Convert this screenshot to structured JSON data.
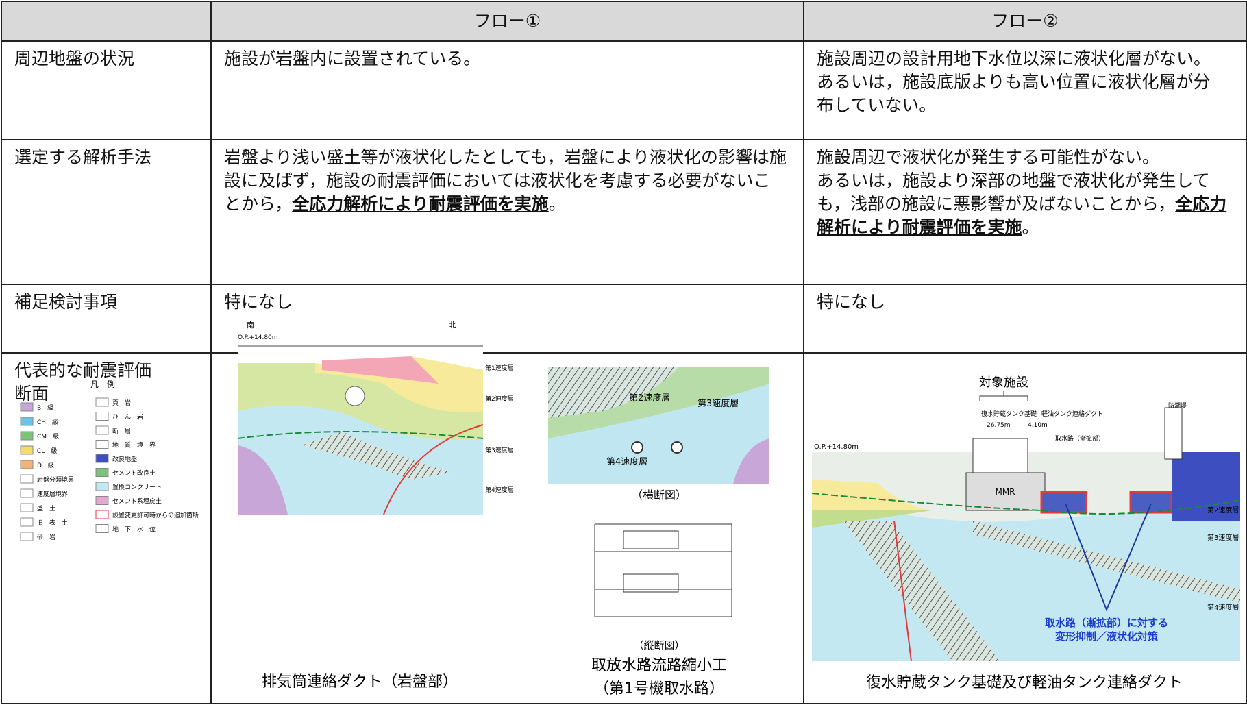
{
  "header": {
    "col1": "フロー①",
    "col2": "フロー②"
  },
  "rows": [
    {
      "label": "周辺地盤の状況",
      "flow1": {
        "text": "施設が岩盤内に設置されている。"
      },
      "flow2": {
        "lines": [
          "施設周辺の設計用地下水位以深に液状化層がない。",
          "あるいは，施設底版よりも高い位置に液状化層が分布していない。"
        ]
      }
    },
    {
      "label": "選定する解析手法",
      "flow1": {
        "before": "岩盤より浅い盛土等が液状化したとしても，岩盤により液状化の影響は施設に及ばず，施設の耐震評価においては液状化を考慮する必要がないことから，",
        "emphasis": "全応力解析により耐震評価を実施",
        "after": "。"
      },
      "flow2": {
        "line1": "施設周辺で液状化が発生する可能性がない。",
        "before": "あるいは，施設より深部の地盤で液状化が発生しても，浅部の施設に悪影響が及ばないことから，",
        "emphasis": "全応力解析により耐震評価を実施",
        "after": "。"
      }
    },
    {
      "label": "補足検討事項",
      "flow1": {
        "text": "特になし"
      },
      "flow2": {
        "text": "特になし"
      }
    },
    {
      "label": "代表的な耐震評価断面",
      "legend": {
        "title": "凡　例",
        "items": [
          "B　級",
          "CH　級",
          "CM　級",
          "CL　級",
          "D　級",
          "岩盤分類境界",
          "速度層境界",
          "盛　土",
          "旧　表　土",
          "砂　岩",
          "頁　岩",
          "ひ　ん　岩",
          "断　層",
          "地　質　境　界",
          "改良地盤",
          "セメント改良土",
          "置換コンクリート",
          "セメント系埋戻土",
          "設置変更許可時からの追加箇所",
          "地　下　水　位"
        ]
      },
      "flow1": {
        "fig1": {
          "south": "南",
          "north": "北",
          "op": "O.P.+14.80m",
          "layers": [
            "第1速度層",
            "第2速度層",
            "第3速度層",
            "第4速度層"
          ],
          "caption": "排気筒連絡ダクト（岩盤部）"
        },
        "fig2": {
          "layers": [
            "第2速度層",
            "第3速度層",
            "第4速度層"
          ],
          "cross": "（横断図）",
          "longitudinal": "（縦断図）",
          "caption": [
            "取放水路流路縮小工",
            "（第1号機取水路）"
          ]
        }
      },
      "flow2": {
        "target": "対象施設",
        "tank": "復水貯蔵タンク基礎",
        "duct": "軽油タンク連絡ダクト",
        "width1": "26.75m",
        "width2": "4.10m",
        "intake": "取水路（漸拡部）",
        "seawall": "防潮堤",
        "op": "O.P.+14.80m",
        "mmr": "MMR",
        "layers": [
          "第2速度層",
          "第3速度層",
          "第4速度層"
        ],
        "note": [
          "取水路（漸拡部）に対する",
          "変形抑制／液状化対策"
        ],
        "caption": "復水貯蔵タンク基礎及び軽油タンク連絡ダクト"
      }
    }
  ]
}
